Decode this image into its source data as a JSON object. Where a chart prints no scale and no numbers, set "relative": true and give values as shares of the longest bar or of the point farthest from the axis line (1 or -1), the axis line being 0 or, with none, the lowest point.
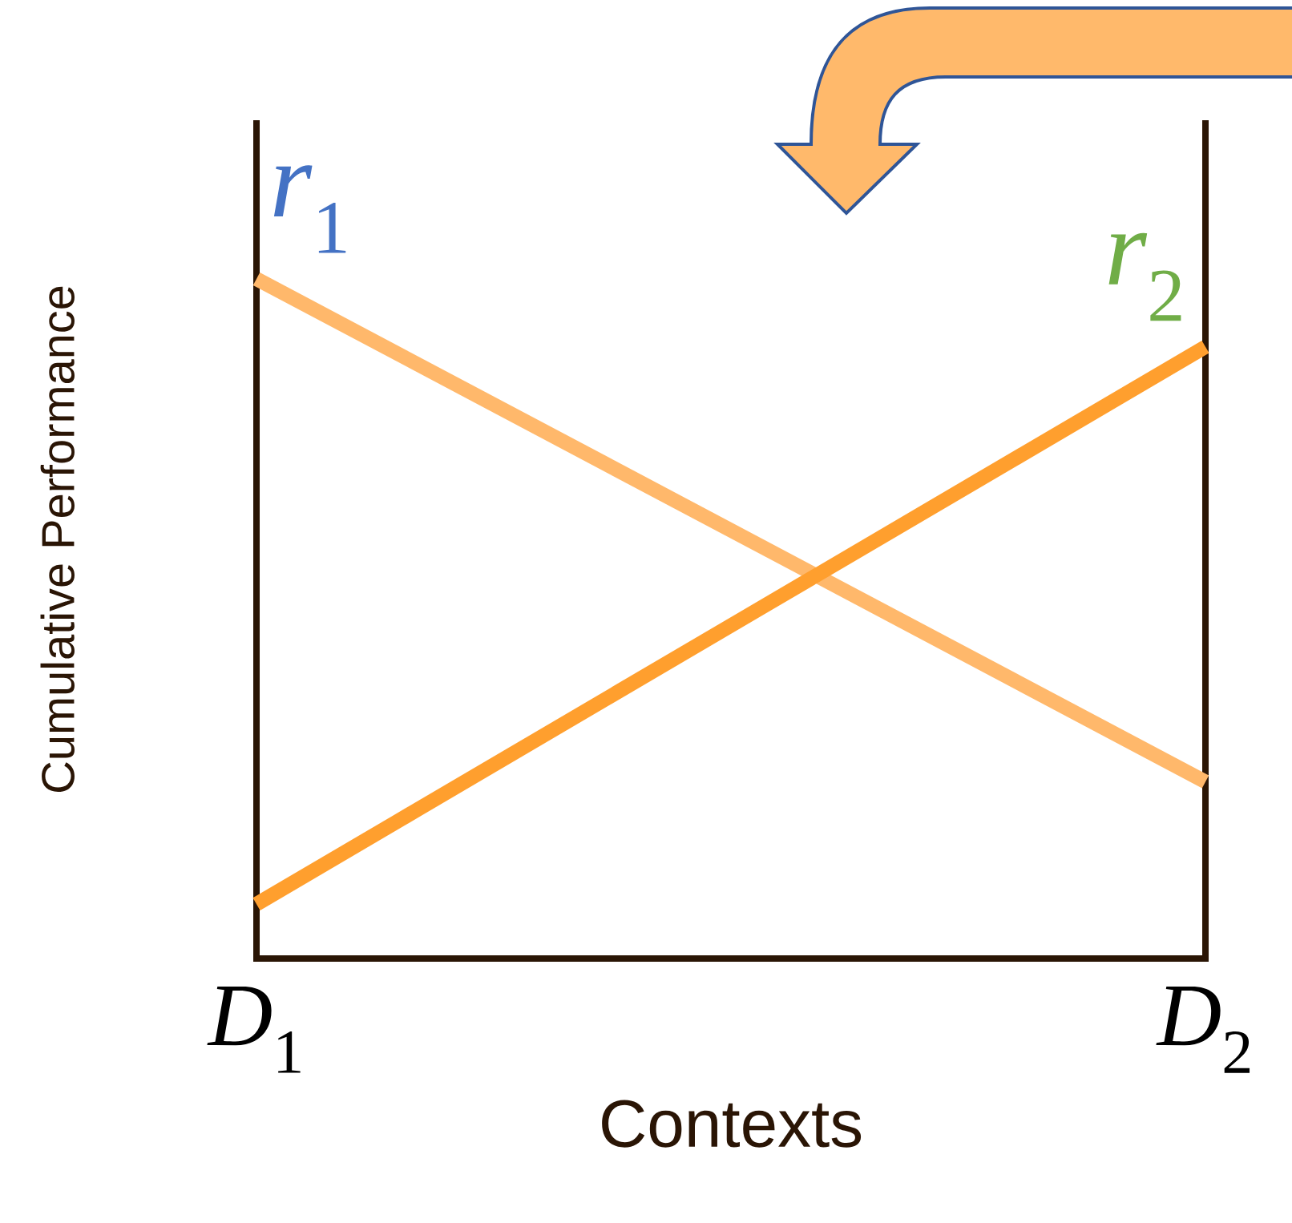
{
  "chart_data": {
    "type": "line",
    "relative": true,
    "categories": [
      "*D*$_{1}$",
      "*D*$_{2}$"
    ],
    "xlabel": "Contexts",
    "ylabel": "Cumulative Performance",
    "series": [
      {
        "name": "*r*$_{1}$",
        "color": "#ffb86b",
        "values": [
          1,
          0.26
        ]
      },
      {
        "name": "*r*$_{2}$",
        "color": "#ff9f2e",
        "values": [
          0.08,
          0.9
        ]
      }
    ]
  }
}
